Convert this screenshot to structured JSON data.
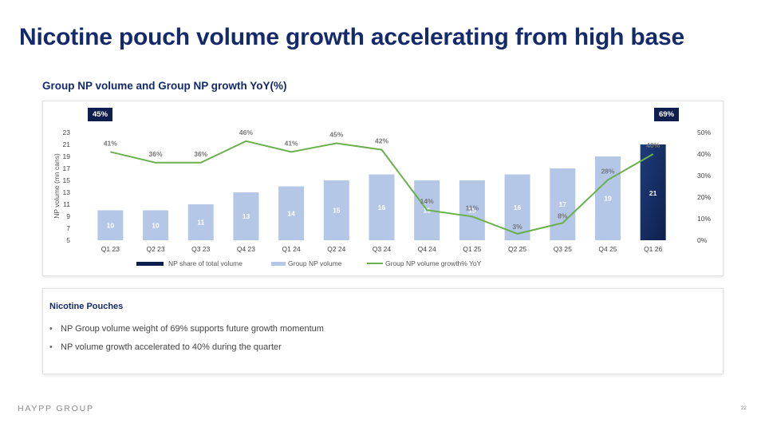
{
  "page": {
    "title": "Nicotine pouch volume growth accelerating from high base",
    "subtitle": "Group NP volume and Group NP growth YoY(%)",
    "footer_logo": "HAYPP GROUP",
    "page_number": "22"
  },
  "notes": {
    "title": "Nicotine Pouches",
    "bullets": [
      "NP Group volume weight of 69% supports future growth momentum",
      "NP volume growth accelerated to 40% during the quarter"
    ]
  },
  "badges": {
    "left": "45%",
    "right": "69%"
  },
  "colors": {
    "bar": "#b4c7e7",
    "bar_highlight": "#0f1f4d",
    "line": "#6ab04c",
    "title": "#152a6b"
  },
  "chart_data": {
    "type": "bar",
    "categories": [
      "Q1 23",
      "Q2 23",
      "Q3 23",
      "Q4 23",
      "Q1 24",
      "Q2 24",
      "Q3 24",
      "Q4 24",
      "Q1 25",
      "Q2 25",
      "Q3 25",
      "Q4 25",
      "Q1 26"
    ],
    "series": [
      {
        "name": "Group NP volume",
        "type": "bar",
        "axis": "left",
        "values": [
          10,
          10,
          11,
          13,
          14,
          15,
          16,
          15,
          15,
          16,
          17,
          19,
          21
        ],
        "labels": [
          "10",
          "10",
          "11",
          "13",
          "14",
          "15",
          "16",
          "15",
          "15",
          "16",
          "17",
          "19",
          "21"
        ]
      },
      {
        "name": "Group NP volume growth% YoY",
        "type": "line",
        "axis": "right",
        "values": [
          41,
          36,
          36,
          46,
          41,
          45,
          42,
          14,
          11,
          3,
          8,
          28,
          40
        ],
        "labels": [
          "41%",
          "36%",
          "36%",
          "46%",
          "41%",
          "45%",
          "42%",
          "14%",
          "11%",
          "3%",
          "8%",
          "28%",
          "40%"
        ]
      }
    ],
    "highlight": {
      "name": "NP share of total volume",
      "index": 12
    },
    "legend": [
      "NP share of total volume",
      "Group NP volume",
      "Group NP volume growth% YoY"
    ],
    "legend_position": "bottom",
    "ylabel": "NP volume (mn cans)",
    "ylim": [
      5,
      23
    ],
    "yticks": [
      "5",
      "7",
      "9",
      "11",
      "13",
      "15",
      "17",
      "19",
      "21",
      "23"
    ],
    "y2lim": [
      0,
      50
    ],
    "y2ticks": [
      "0%",
      "10%",
      "20%",
      "30%",
      "40%",
      "50%"
    ],
    "grid": false
  }
}
